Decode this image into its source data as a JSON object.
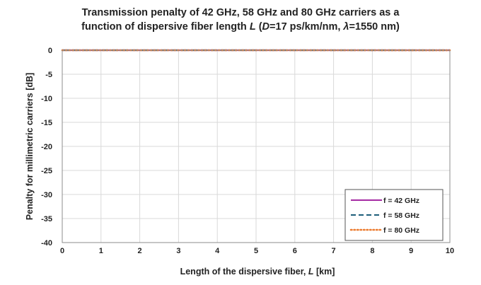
{
  "chart_data": {
    "type": "line",
    "title_line1": "Transmission penalty of 42 GHz, 58 GHz and 80 GHz carriers as a",
    "title_line2_prefix": "function of dispersive fiber length ",
    "title_line2_L": "L",
    "title_line2_mid": " (",
    "title_line2_D": "D",
    "title_line2_dval": "=17 ps/km/nm, ",
    "title_line2_lambda": "λ",
    "title_line2_suffix": "=1550 nm)",
    "xlabel_prefix": "Length of the dispersive fiber,  ",
    "xlabel_L": "L",
    "xlabel_suffix": " [km]",
    "ylabel": "Penalty for millimetric carriers [dB]",
    "xlim": [
      0,
      10
    ],
    "ylim": [
      -40,
      0
    ],
    "x_ticks": [
      "0",
      "1",
      "2",
      "3",
      "4",
      "5",
      "6",
      "7",
      "8",
      "9",
      "10"
    ],
    "y_ticks": [
      "0",
      "-5",
      "-10",
      "-15",
      "-20",
      "-25",
      "-30",
      "-35",
      "-40"
    ],
    "grid": true,
    "legend_position": "bottom-right",
    "fiber": {
      "dispersion_ps_per_km_nm": 17,
      "wavelength_nm": 1550
    },
    "series": [
      {
        "name": "f = 42 GHz",
        "frequency_ghz": 42,
        "color": "#a52aa3",
        "style": "solid"
      },
      {
        "name": "f = 58 GHz",
        "frequency_ghz": 58,
        "color": "#1d5e7a",
        "style": "dashed"
      },
      {
        "name": "f = 80 GHz",
        "frequency_ghz": 80,
        "color": "#ec7b2f",
        "style": "dotted"
      }
    ]
  }
}
